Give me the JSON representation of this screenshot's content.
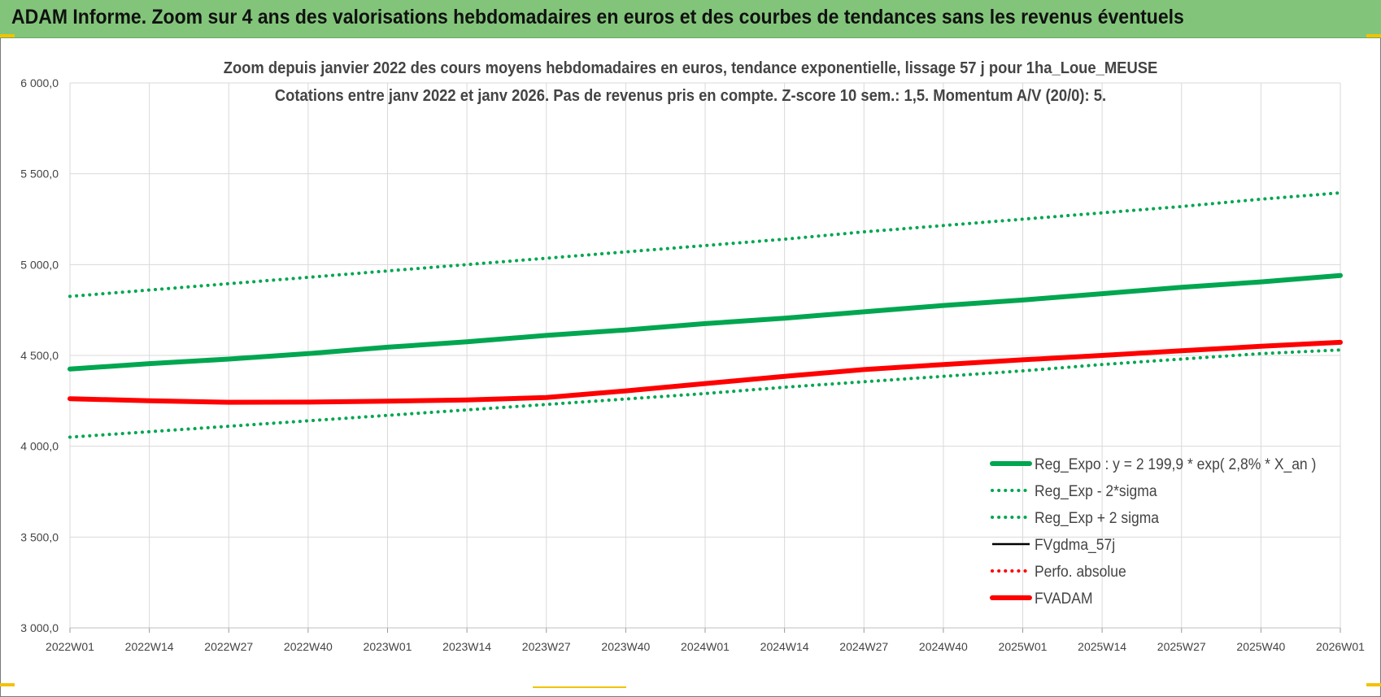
{
  "banner": {
    "title": "ADAM Informe. Zoom sur 4 ans des valorisations hebdomadaires en euros et des courbes de tendances sans les revenus éventuels"
  },
  "colors": {
    "banner_bg": "#82c57a",
    "green": "#00a650",
    "red": "#ff0000",
    "black": "#000000",
    "grid": "#d9d9d9"
  },
  "chart_data": {
    "type": "line",
    "title": "Zoom depuis janvier 2022 des cours moyens hebdomadaires en euros, tendance exponentielle, lissage 57 j pour 1ha_Loue_MEUSE",
    "subtitle": "Cotations entre janv 2022 et janv 2026. Pas de revenus pris en compte. Z-score 10 sem.: 1,5. Momentum A/V (20/0): 5.",
    "xlabel": "",
    "ylabel": "",
    "ylim": [
      3000,
      6000
    ],
    "y_ticks": [
      "3 000,0",
      "3 500,0",
      "4 000,0",
      "4 500,0",
      "5 000,0",
      "5 500,0",
      "6 000,0"
    ],
    "x_ticks": [
      "2022W01",
      "2022W14",
      "2022W27",
      "2022W40",
      "2023W01",
      "2023W14",
      "2023W27",
      "2023W40",
      "2024W01",
      "2024W14",
      "2024W27",
      "2024W40",
      "2025W01",
      "2025W14",
      "2025W27",
      "2025W40",
      "2026W01"
    ],
    "grid": true,
    "legend_position": "bottom-right",
    "series": [
      {
        "name": "Reg_Expo : y = 2 199,9 * exp( 2,8% *  X_an )",
        "color": "#00a650",
        "style": "solid-thick",
        "values": [
          4425,
          4455,
          4480,
          4510,
          4545,
          4575,
          4610,
          4640,
          4675,
          4705,
          4740,
          4775,
          4805,
          4840,
          4875,
          4905,
          4940
        ]
      },
      {
        "name": "Reg_Exp - 2*sigma",
        "color": "#00a650",
        "style": "dotted",
        "values": [
          4050,
          4080,
          4110,
          4140,
          4170,
          4200,
          4230,
          4260,
          4290,
          4325,
          4355,
          4385,
          4415,
          4450,
          4480,
          4510,
          4530
        ]
      },
      {
        "name": "Reg_Exp + 2 sigma",
        "color": "#00a650",
        "style": "dotted",
        "values": [
          4825,
          4860,
          4895,
          4930,
          4965,
          5000,
          5035,
          5070,
          5105,
          5140,
          5180,
          5215,
          5250,
          5285,
          5320,
          5360,
          5395
        ]
      },
      {
        "name": "FVgdma_57j",
        "color": "#000000",
        "style": "solid",
        "values": [
          4260,
          4250,
          4245,
          4245,
          4248,
          4255,
          4268,
          4305,
          4345,
          4385,
          4420,
          4450,
          4475,
          4500,
          4525,
          4548,
          4570
        ]
      },
      {
        "name": "Perfo. absolue",
        "color": "#ff0000",
        "style": "dotted",
        "values": [
          4260,
          4250,
          4245,
          4245,
          4248,
          4255,
          4268,
          4305,
          4345,
          4385,
          4420,
          4450,
          4475,
          4500,
          4525,
          4548,
          4570
        ]
      },
      {
        "name": "FVADAM",
        "color": "#ff0000",
        "style": "solid-thick",
        "values": [
          4262,
          4250,
          4242,
          4243,
          4248,
          4255,
          4268,
          4305,
          4345,
          4385,
          4422,
          4450,
          4476,
          4500,
          4526,
          4550,
          4572
        ]
      }
    ]
  }
}
